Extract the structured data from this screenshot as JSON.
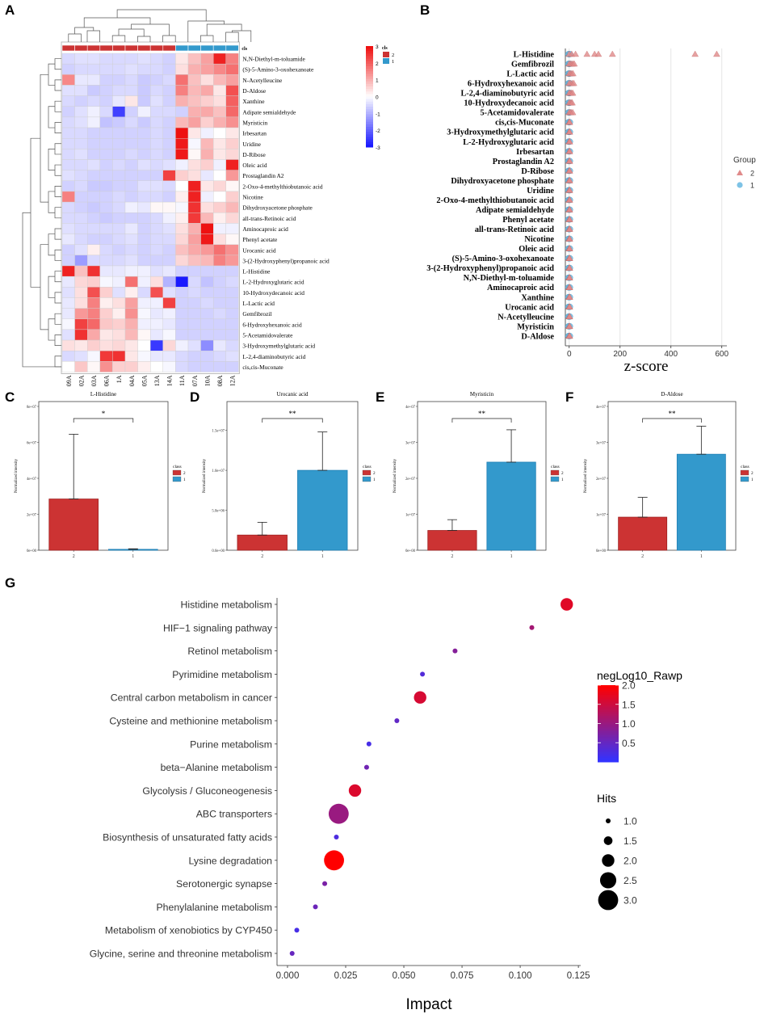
{
  "panel_labels": [
    "A",
    "B",
    "C",
    "D",
    "E",
    "F",
    "G"
  ],
  "colors": {
    "group2": "#cc3333",
    "group1": "#3399cc",
    "heat_low": "#1a1aff",
    "heat_mid": "#ffffff",
    "heat_high": "#ee1111",
    "impact_low": "#3333ff",
    "impact_high": "#ff0000",
    "triangle": "#e08a8a",
    "circle": "#7ec3e6"
  },
  "chart_data": [
    {
      "panel": "A",
      "type": "heatmap",
      "annotation_label": "cls",
      "legend_title": "cls",
      "legend_entries": [
        "2",
        "1"
      ],
      "color_scale_ticks": [
        "3",
        "2",
        "1",
        "0",
        "-1",
        "-2",
        "-3"
      ],
      "color_range": [
        -3,
        3
      ],
      "samples": [
        "09A",
        "02A",
        "03A",
        "06A",
        "1A",
        "04A",
        "05A",
        "13A",
        "14A",
        "11A",
        "07A",
        "10A",
        "08A",
        "12A"
      ],
      "sample_class": [
        "2",
        "2",
        "2",
        "2",
        "2",
        "2",
        "2",
        "2",
        "2",
        "1",
        "1",
        "1",
        "1",
        "1"
      ],
      "rows": [
        "N,N-Diethyl-m-toluamide",
        "(S)-5-Amino-3-oxohexanoate",
        "N-Acetylleucine",
        "D-Aldose",
        "Xanthine",
        "Adipate semialdehyde",
        "Myristicin",
        "Irbesartan",
        "Uridine",
        "D-Ribose",
        "Oleic acid",
        "Prostaglandin A2",
        "2-Oxo-4-methylthiobutanoic acid",
        "Nicotine",
        "Dihydroxyacetone phosphate",
        "all-trans-Retinoic acid",
        "Aminocaproic acid",
        "Phenyl acetate",
        "Urocanic acid",
        "3-(2-Hydroxyphenyl)propanoic acid",
        "L-Histidine",
        "L-2-Hydroxyglutaric acid",
        "10-Hydroxydecanoic acid",
        "L-Lactic acid",
        "Gemfibrozil",
        "6-Hydroxyhexanoic acid",
        "5-Acetamidovalerate",
        "3-Hydroxymethylglutaric acid",
        "L-2,4-diaminobutyric acid",
        "cis,cis-Muconate"
      ],
      "values": [
        [
          -0.5,
          -0.4,
          -0.4,
          -0.5,
          -0.5,
          -0.5,
          -0.4,
          -0.5,
          -0.6,
          0.3,
          0.8,
          1.2,
          2.8,
          1.6
        ],
        [
          -0.6,
          -0.5,
          -0.5,
          -0.5,
          -0.5,
          -0.4,
          -0.5,
          -0.5,
          -0.6,
          0.4,
          1.0,
          1.2,
          1.5,
          1.8
        ],
        [
          1.5,
          -0.3,
          -0.3,
          -0.6,
          -0.6,
          -0.5,
          -0.7,
          -0.6,
          -0.5,
          1.8,
          0.8,
          0.4,
          0.9,
          1.2
        ],
        [
          -0.4,
          -0.4,
          -0.7,
          -0.6,
          -0.5,
          -0.5,
          -0.7,
          -0.5,
          -0.6,
          1.6,
          0.9,
          1.1,
          0.3,
          2.2
        ],
        [
          -0.5,
          -0.6,
          -0.5,
          -0.6,
          -0.3,
          0.3,
          -0.7,
          -0.4,
          -0.6,
          1.0,
          0.8,
          0.6,
          0.4,
          2.0
        ],
        [
          -0.6,
          -0.4,
          -0.2,
          -0.5,
          -2.5,
          -0.6,
          -0.2,
          -0.5,
          -0.5,
          -0.6,
          1.0,
          1.1,
          0.8,
          1.9
        ],
        [
          -0.5,
          -0.4,
          -0.2,
          -0.8,
          -0.7,
          -0.5,
          -0.7,
          -0.5,
          -0.6,
          0.9,
          1.2,
          0.6,
          1.0,
          1.4
        ],
        [
          -0.5,
          -0.5,
          -0.6,
          -0.6,
          -0.6,
          -0.6,
          -0.6,
          -0.5,
          -0.6,
          3.0,
          0.3,
          -0.2,
          0.0,
          0.3
        ],
        [
          -0.5,
          -0.5,
          -0.6,
          -0.6,
          -0.6,
          -0.6,
          -0.6,
          -0.5,
          -0.6,
          2.9,
          -0.1,
          0.9,
          0.3,
          0.6
        ],
        [
          -0.5,
          -0.4,
          -0.6,
          -0.6,
          -0.6,
          -0.5,
          -0.6,
          -0.5,
          -0.6,
          2.9,
          0.1,
          1.0,
          0.3,
          0.5
        ],
        [
          -0.5,
          -0.5,
          -0.4,
          -0.6,
          -0.5,
          -0.6,
          -0.4,
          -0.5,
          -0.4,
          -0.2,
          0.4,
          0.6,
          -0.2,
          2.8
        ],
        [
          -0.4,
          -0.5,
          -0.6,
          -0.6,
          -0.6,
          -0.6,
          -0.6,
          -0.6,
          2.4,
          0.6,
          0.4,
          -0.3,
          0.0,
          1.3
        ],
        [
          -0.6,
          -0.5,
          -0.7,
          -0.7,
          -0.6,
          -0.6,
          -0.4,
          -0.4,
          -0.5,
          0.0,
          2.8,
          0.3,
          0.5,
          0.1
        ],
        [
          1.6,
          -0.6,
          -0.6,
          -0.6,
          -0.5,
          -0.6,
          -0.5,
          -0.5,
          -0.6,
          0.2,
          2.8,
          -0.2,
          0.0,
          0.6
        ],
        [
          -0.5,
          -0.6,
          -0.7,
          -0.6,
          -0.5,
          -0.2,
          -0.3,
          0.1,
          0.1,
          -0.1,
          2.6,
          0.4,
          0.6,
          0.9
        ],
        [
          -0.5,
          -0.5,
          -0.6,
          -0.7,
          -0.6,
          -0.6,
          -0.6,
          -0.5,
          -0.2,
          0.2,
          2.5,
          0.9,
          0.2,
          0.5
        ],
        [
          -0.4,
          -0.5,
          -0.5,
          -0.5,
          -0.5,
          -0.3,
          -0.6,
          -0.5,
          -0.4,
          0.4,
          1.0,
          3.0,
          -0.2,
          -0.2
        ],
        [
          -0.3,
          -0.5,
          -0.6,
          -0.6,
          -0.5,
          -0.4,
          -0.6,
          -0.5,
          -0.5,
          0.5,
          1.2,
          2.9,
          0.4,
          0.1
        ],
        [
          -0.6,
          -0.4,
          0.2,
          -0.5,
          -0.6,
          -0.5,
          -0.6,
          -0.5,
          -0.6,
          0.8,
          1.1,
          1.3,
          1.8,
          1.4
        ],
        [
          -0.6,
          -1.3,
          -0.5,
          -0.5,
          -0.5,
          -0.4,
          -0.6,
          -0.6,
          -0.6,
          0.5,
          0.8,
          0.9,
          1.6,
          1.3
        ],
        [
          2.8,
          0.8,
          2.6,
          -0.3,
          -0.3,
          -0.2,
          -0.2,
          -0.4,
          -0.3,
          -0.6,
          -0.6,
          -0.6,
          -0.6,
          -0.6
        ],
        [
          -0.3,
          0.5,
          0.6,
          -0.1,
          -0.2,
          1.8,
          -0.2,
          0.4,
          -1.0,
          -3.0,
          -0.5,
          -0.8,
          -0.6,
          -0.5
        ],
        [
          -0.4,
          0.4,
          2.2,
          0.6,
          -0.4,
          0.2,
          -0.5,
          2.2,
          -0.4,
          -0.6,
          -0.5,
          -0.6,
          -0.6,
          -0.6
        ],
        [
          -0.3,
          0.4,
          1.6,
          0.2,
          0.4,
          1.2,
          -0.2,
          -0.2,
          2.4,
          -0.6,
          -0.6,
          -0.5,
          -0.6,
          -0.6
        ],
        [
          -0.3,
          1.3,
          1.6,
          0.6,
          0.2,
          1.4,
          -0.1,
          -0.3,
          -0.2,
          -0.6,
          -0.6,
          -0.6,
          -0.5,
          -0.6
        ],
        [
          -0.1,
          2.4,
          1.9,
          0.7,
          0.6,
          1.0,
          -0.2,
          -0.2,
          -0.3,
          -0.6,
          -0.6,
          -0.6,
          -0.6,
          -0.6
        ],
        [
          -0.4,
          2.6,
          1.1,
          0.3,
          0.4,
          0.9,
          0.1,
          -0.3,
          -0.1,
          -0.6,
          -0.6,
          -0.6,
          -0.6,
          -0.6
        ],
        [
          0.4,
          0.3,
          0.6,
          0.4,
          0.5,
          0.3,
          0.0,
          -2.6,
          0.5,
          -0.2,
          -0.4,
          -1.5,
          -0.3,
          -0.5
        ],
        [
          -0.5,
          -0.4,
          -0.1,
          2.5,
          2.6,
          0.3,
          -0.1,
          -0.3,
          -0.3,
          -0.5,
          -0.6,
          -0.6,
          -0.5,
          -0.4
        ],
        [
          0.0,
          0.7,
          0.1,
          1.4,
          0.6,
          0.6,
          0.2,
          0.0,
          -0.1,
          -0.5,
          -0.6,
          -0.6,
          -0.6,
          -0.6
        ]
      ]
    },
    {
      "panel": "B",
      "type": "scatter",
      "xlabel": "z-score",
      "ylabel": "",
      "xlim": [
        -15,
        620
      ],
      "xticks": [
        0,
        200,
        400,
        600
      ],
      "legend_title": "Group",
      "legend_entries": [
        {
          "name": "2",
          "shape": "triangle"
        },
        {
          "name": "1",
          "shape": "circle"
        }
      ],
      "categories": [
        "L-Histidine",
        "Gemfibrozil",
        "L-Lactic acid",
        "6-Hydroxyhexanoic acid",
        "L-2,4-diaminobutyric acid",
        "10-Hydroxydecanoic acid",
        "5-Acetamidovalerate",
        "cis,cis-Muconate",
        "3-Hydroxymethylglutaric acid",
        "L-2-Hydroxyglutaric acid",
        "Irbesartan",
        "Prostaglandin A2",
        "D-Ribose",
        "Dihydroxyacetone phosphate",
        "Uridine",
        "2-Oxo-4-methylthiobutanoic acid",
        "Adipate semialdehyde",
        "Phenyl acetate",
        "all-trans-Retinoic acid",
        "Nicotine",
        "Oleic acid",
        "(S)-5-Amino-3-oxohexanoate",
        "3-(2-Hydroxyphenyl)propanoic acid",
        "N,N-Diethyl-m-toluamide",
        "Aminocaproic acid",
        "Xanthine",
        "Urocanic acid",
        "N-Acetylleucine",
        "Myristicin",
        "D-Aldose"
      ],
      "group2_values": [
        [
          0,
          10,
          25,
          70,
          100,
          115,
          170,
          495,
          580
        ],
        [
          0,
          5,
          10,
          15,
          20
        ],
        [
          0,
          5,
          10,
          15
        ],
        [
          0,
          5,
          12,
          18
        ],
        [
          0,
          4,
          9,
          14
        ],
        [
          0,
          4,
          8,
          12
        ],
        [
          0,
          4,
          8,
          14
        ],
        [
          0,
          1,
          2
        ],
        [
          0,
          1,
          2
        ],
        [
          0,
          1,
          2
        ],
        [
          0,
          1,
          2
        ],
        [
          0,
          1,
          2
        ],
        [
          0,
          1,
          2
        ],
        [
          0,
          1,
          2
        ],
        [
          0,
          1,
          2
        ],
        [
          0,
          1,
          2
        ],
        [
          0,
          1,
          2
        ],
        [
          0,
          1,
          2
        ],
        [
          0,
          1,
          2
        ],
        [
          0,
          1,
          2
        ],
        [
          0,
          1,
          2
        ],
        [
          0,
          1,
          2
        ],
        [
          0,
          1,
          2
        ],
        [
          0,
          1,
          2
        ],
        [
          0,
          1,
          2
        ],
        [
          0,
          1,
          2
        ],
        [
          0,
          1,
          2
        ],
        [
          0,
          1,
          2
        ],
        [
          0,
          1,
          2
        ],
        [
          0,
          1,
          2
        ]
      ],
      "group1_values": [
        [
          -3,
          0,
          3
        ],
        [
          -3,
          0,
          3
        ],
        [
          -3,
          0,
          3
        ],
        [
          -3,
          0,
          3
        ],
        [
          -3,
          0,
          3
        ],
        [
          -3,
          0,
          3
        ],
        [
          -3,
          0,
          3
        ],
        [
          -3,
          0,
          3
        ],
        [
          -3,
          0,
          3
        ],
        [
          -3,
          0,
          3
        ],
        [
          -3,
          0,
          3
        ],
        [
          -3,
          0,
          3
        ],
        [
          -3,
          0,
          3
        ],
        [
          -3,
          0,
          3
        ],
        [
          -3,
          0,
          3
        ],
        [
          -3,
          0,
          3
        ],
        [
          -3,
          0,
          3
        ],
        [
          -3,
          0,
          3
        ],
        [
          -3,
          0,
          3
        ],
        [
          -3,
          0,
          3
        ],
        [
          -3,
          0,
          3
        ],
        [
          -3,
          0,
          3
        ],
        [
          -3,
          0,
          3
        ],
        [
          -3,
          0,
          3
        ],
        [
          -3,
          0,
          3
        ],
        [
          -3,
          0,
          3
        ],
        [
          -3,
          0,
          3
        ],
        [
          -3,
          0,
          3
        ],
        [
          -3,
          0,
          3
        ],
        [
          -3,
          0,
          3
        ]
      ]
    },
    {
      "panel": "C",
      "type": "bar",
      "title": "L-Histidine",
      "ylabel": "Normalized intensity",
      "categories": [
        "2",
        "1"
      ],
      "values": [
        28500000,
        500000
      ],
      "errors": [
        36000000,
        300000
      ],
      "ylim": [
        0,
        80000000
      ],
      "yticks": [
        0,
        20000000,
        40000000,
        60000000,
        80000000
      ],
      "ytick_labels": [
        "0e+00",
        "2e+07",
        "4e+07",
        "6e+07",
        "8e+07"
      ],
      "significance": "*",
      "legend_title": "class",
      "legend_entries": [
        "2",
        "1"
      ]
    },
    {
      "panel": "D",
      "type": "bar",
      "title": "Urocanic acid",
      "ylabel": "Normalized intensity",
      "categories": [
        "2",
        "1"
      ],
      "values": [
        1900000,
        10000000
      ],
      "errors": [
        1600000,
        4800000
      ],
      "ylim": [
        0,
        18000000
      ],
      "yticks": [
        0,
        5000000,
        10000000,
        15000000
      ],
      "ytick_labels": [
        "0.0e+00",
        "5.0e+06",
        "1.0e+07",
        "1.5e+07"
      ],
      "significance": "**",
      "legend_title": "class",
      "legend_entries": [
        "2",
        "1"
      ]
    },
    {
      "panel": "E",
      "type": "bar",
      "title": "Myristicin",
      "ylabel": "Normalized intensity",
      "categories": [
        "2",
        "1"
      ],
      "values": [
        5500000,
        24500000
      ],
      "errors": [
        3000000,
        9000000
      ],
      "ylim": [
        0,
        40000000
      ],
      "yticks": [
        0,
        10000000,
        20000000,
        30000000,
        40000000
      ],
      "ytick_labels": [
        "0e+00",
        "1e+07",
        "2e+07",
        "3e+07",
        "4e+07"
      ],
      "significance": "**",
      "legend_title": "class",
      "legend_entries": [
        "2",
        "1"
      ]
    },
    {
      "panel": "F",
      "type": "bar",
      "title": "D-Aldose",
      "ylabel": "Normalized intensity",
      "categories": [
        "2",
        "1"
      ],
      "values": [
        9200000,
        26700000
      ],
      "errors": [
        5500000,
        7800000
      ],
      "ylim": [
        0,
        40000000
      ],
      "yticks": [
        0,
        10000000,
        20000000,
        30000000,
        40000000
      ],
      "ytick_labels": [
        "0e+00",
        "1e+07",
        "2e+07",
        "3e+07",
        "4e+07"
      ],
      "significance": "**",
      "legend_title": "class",
      "legend_entries": [
        "2",
        "1"
      ]
    },
    {
      "panel": "G",
      "type": "scatter",
      "xlabel": "Impact",
      "xlim": [
        -0.0045,
        0.126
      ],
      "xticks": [
        0.0,
        0.025,
        0.05,
        0.075,
        0.1,
        0.125
      ],
      "xtick_labels": [
        "0.000",
        "0.025",
        "0.050",
        "0.075",
        "0.100",
        "0.125"
      ],
      "color_legend_title": "negLog10_Rawp",
      "color_range": [
        0.0,
        2.0
      ],
      "color_ticks": [
        "2.0",
        "1.5",
        "1.0",
        "0.5"
      ],
      "size_legend_title": "Hits",
      "size_ticks": [
        "1.0",
        "1.5",
        "2.0",
        "2.5",
        "3.0"
      ],
      "categories": [
        "Histidine metabolism",
        "HIF−1 signaling pathway",
        "Retinol metabolism",
        "Pyrimidine metabolism",
        "Central carbon metabolism in cancer",
        "Cysteine and methionine metabolism",
        "Purine metabolism",
        "beta−Alanine metabolism",
        "Glycolysis / Gluconeogenesis",
        "ABC transporters",
        "Biosynthesis of unsaturated fatty acids",
        "Lysine degradation",
        "Serotonergic synapse",
        "Phenylalanine metabolism",
        "Metabolism of xenobiotics by CYP450",
        "Glycine, serine and threonine metabolism"
      ],
      "impact": [
        0.12,
        0.105,
        0.072,
        0.058,
        0.057,
        0.047,
        0.035,
        0.034,
        0.029,
        0.022,
        0.021,
        0.02,
        0.016,
        0.012,
        0.004,
        0.002
      ],
      "negLog10_Rawp": [
        1.7,
        1.1,
        0.8,
        0.3,
        1.6,
        0.45,
        0.2,
        0.6,
        1.65,
        1.0,
        0.25,
        2.0,
        0.7,
        0.55,
        0.2,
        0.5
      ],
      "hits": [
        2,
        1,
        1,
        1,
        2,
        1,
        1,
        1,
        2,
        3,
        1,
        3,
        1,
        1,
        1,
        1
      ]
    }
  ]
}
